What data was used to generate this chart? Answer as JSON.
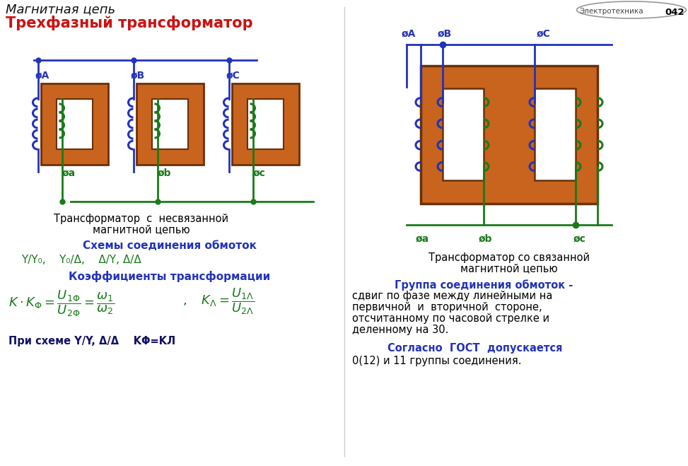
{
  "bg_color": "#ffffff",
  "title_line1": "Магнитная цепь",
  "title_line2": "Трехфазный трансформатор",
  "title_line1_color": "#111111",
  "title_line2_color": "#cc1111",
  "badge_text": "Электротехника",
  "badge_number": "042",
  "core_color": "#c8641e",
  "core_edge": "#6a3008",
  "wire_blue": "#2233bb",
  "wire_green": "#1a7a1a",
  "label_color_blue": "#2233bb",
  "label_color_green": "#1a7a1a",
  "section1_caption_line1": "Трансформатор  с  несвязанной",
  "section1_caption_line2": "магнитной цепью",
  "section2_caption_line1": "Трансформатор со связанной",
  "section2_caption_line2": "магнитной цепью",
  "schemes_title": "Схемы соединения обмоток",
  "schemes_text": "Y/Y₀,    Y₀/Δ,    Δ/Y, Δ/Δ",
  "coeff_title": "Коэффициенты трансформации",
  "bottom_text": "При схеме Y/Y, Δ/Δ    KΦ=KЛ",
  "right_group_title": "Группа соединения обмоток -",
  "right_group_body_lines": [
    "сдвиг по фазе между линейными на",
    "первичной  и  вторичной  стороне,",
    "отсчитанному по часовой стрелке и",
    "деленному на 30."
  ],
  "right_gost_title": "Согласно  ГОСТ  допускается",
  "right_gost_body": "0(12) и 11 группы соединения."
}
